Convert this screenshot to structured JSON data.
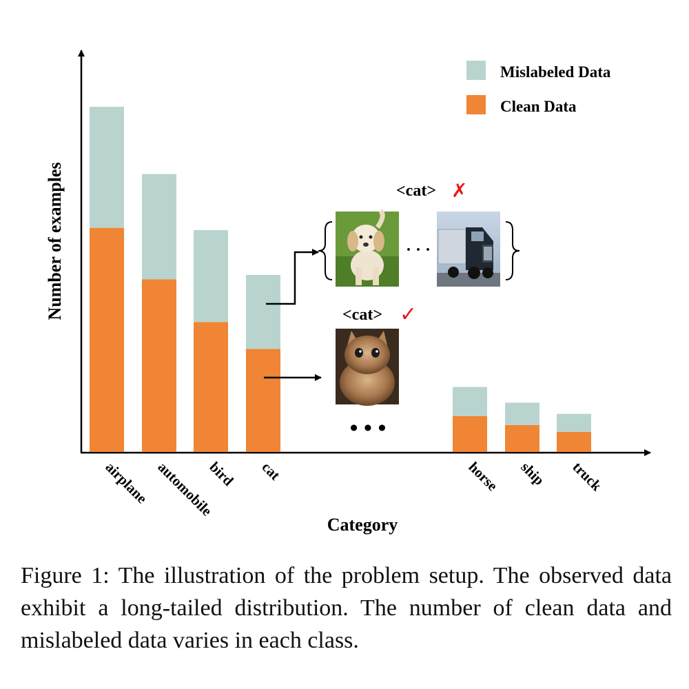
{
  "chart_data": {
    "type": "bar",
    "stacked": true,
    "categories": [
      "airplane",
      "automobile",
      "bird",
      "cat",
      "horse",
      "ship",
      "truck"
    ],
    "series": [
      {
        "name": "Clean Data",
        "values": [
          100,
          77,
          58,
          46,
          16,
          12,
          9
        ]
      },
      {
        "name": "Mislabeled Data",
        "values": [
          54,
          47,
          41,
          33,
          13,
          10,
          8
        ]
      }
    ],
    "omitted_marker": "• • •",
    "xlabel": "Category",
    "ylabel": "Number of examples",
    "ylim": [
      0,
      160
    ],
    "grid": false,
    "legend_position": "top-right",
    "colors": {
      "Clean Data": "#ef8535",
      "Mislabeled Data": "#b9d4cf"
    }
  },
  "annotations": {
    "mislabeled_tag": "<cat>",
    "mislabeled_mark": "✗",
    "clean_tag": "<cat>",
    "clean_mark": "✓",
    "ellipsis": "· · ·",
    "mark_color": "#e8191c"
  },
  "caption": "Figure 1: The illustration of the problem setup. The observed data exhibit a long-tailed distribution. The number of clean data and mislabeled data varies in each class."
}
